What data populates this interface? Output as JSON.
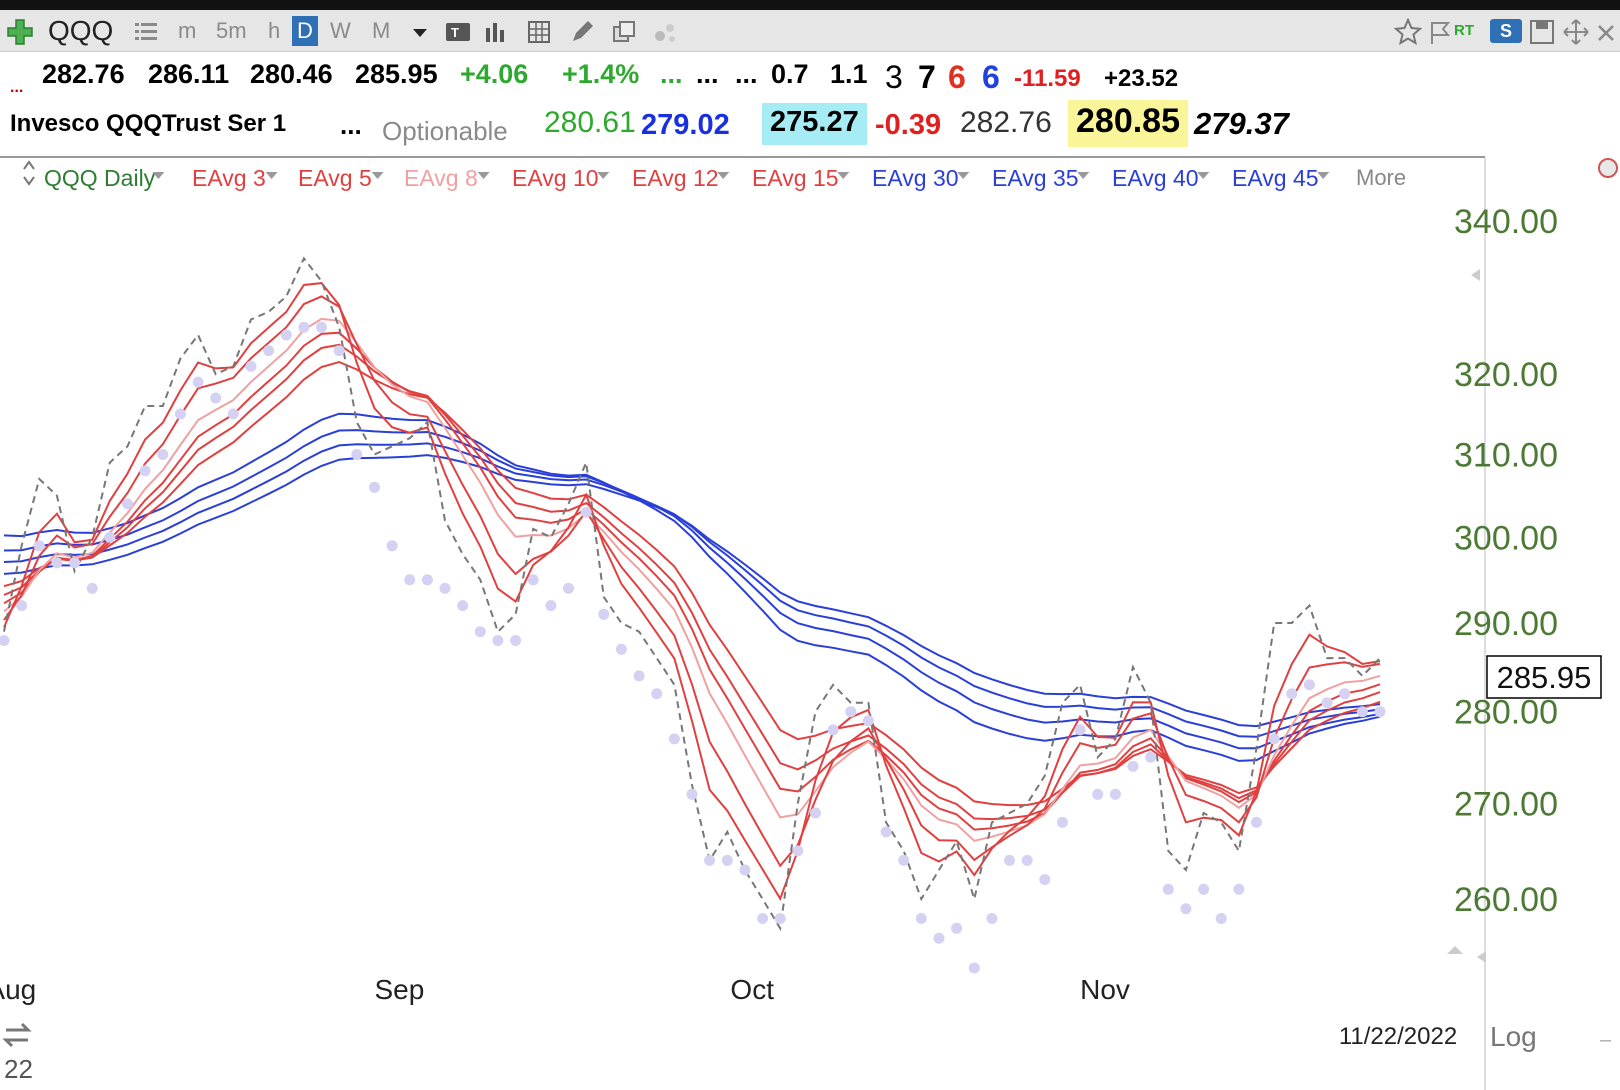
{
  "toolbar": {
    "symbol": "QQQ",
    "intervals": [
      "m",
      "5m",
      "h",
      "D",
      "W",
      "M"
    ],
    "active_interval": "D",
    "rt_label": "RT",
    "s_label": "S"
  },
  "quote": {
    "row1": [
      {
        "text": "...",
        "color": "#c00000"
      },
      {
        "text": "282.76",
        "color": "#000000"
      },
      {
        "text": "286.11",
        "color": "#000000"
      },
      {
        "text": "280.46",
        "color": "#000000"
      },
      {
        "text": "285.95",
        "color": "#000000"
      },
      {
        "text": "+4.06",
        "color": "#2ea82e"
      },
      {
        "text": "+1.4%",
        "color": "#2ea82e"
      },
      {
        "text": "...",
        "color": "#2ea82e"
      },
      {
        "text": "...",
        "color": "#000000"
      },
      {
        "text": "...",
        "color": "#000000"
      },
      {
        "text": "0.7",
        "color": "#000000"
      },
      {
        "text": "1.1",
        "color": "#000000"
      },
      {
        "text": "3",
        "color": "#000000"
      },
      {
        "text": "7",
        "color": "#000000"
      },
      {
        "text": "6",
        "color": "#e03020"
      },
      {
        "text": "6",
        "color": "#2040e0"
      },
      {
        "text": "-11.59",
        "color": "#e02020"
      },
      {
        "text": "+23.52",
        "color": "#000000"
      }
    ],
    "row2": [
      {
        "text": "Invesco QQQTrust Ser 1",
        "color": "#000000"
      },
      {
        "text": "...",
        "color": "#000000"
      },
      {
        "text": "Optionable",
        "color": "#8a8a8a"
      },
      {
        "text": "280.61",
        "color": "#2ea82e"
      },
      {
        "text": "279.02",
        "color": "#1a30e0"
      },
      {
        "text": "275.27",
        "color": "#000000"
      },
      {
        "text": "-0.39",
        "color": "#e02020"
      },
      {
        "text": "282.76",
        "color": "#333333"
      },
      {
        "text": "280.85",
        "color": "#000000"
      },
      {
        "text": "279.37",
        "color": "#000000"
      }
    ]
  },
  "legend": {
    "items": [
      {
        "label": "QQQ Daily",
        "color": "#2e7d32"
      },
      {
        "label": "EAvg 3",
        "color": "#e04040"
      },
      {
        "label": "EAvg 5",
        "color": "#e04040"
      },
      {
        "label": "EAvg 8",
        "color": "#f0a0a0"
      },
      {
        "label": "EAvg 10",
        "color": "#e04040"
      },
      {
        "label": "EAvg 12",
        "color": "#e04040"
      },
      {
        "label": "EAvg 15",
        "color": "#e04040"
      },
      {
        "label": "EAvg 30",
        "color": "#2a3fd8"
      },
      {
        "label": "EAvg 35",
        "color": "#2a3fd8"
      },
      {
        "label": "EAvg 40",
        "color": "#2a3fd8"
      },
      {
        "label": "EAvg 45",
        "color": "#2a3fd8"
      }
    ],
    "more": "More"
  },
  "chart_data": {
    "type": "line",
    "title": "QQQ Daily",
    "ylim": [
      250,
      345
    ],
    "y_ticks": [
      340,
      320,
      310,
      300,
      290,
      280,
      270,
      260
    ],
    "y_tick_labels": [
      "340.00",
      "320.00",
      "310.00",
      "300.00",
      "290.00",
      "280.00",
      "270.00",
      "260.00"
    ],
    "x_labels": [
      {
        "label": "Aug",
        "x": 0.3
      },
      {
        "label": "Sep",
        "x": 22.3
      },
      {
        "label": "Oct",
        "x": 42.3
      },
      {
        "label": "Nov",
        "x": 62.3
      }
    ],
    "last_price": 285.95,
    "last_price_label": "285.95",
    "date_label": "11/22/2022",
    "scale_label": "Log",
    "corner_label": "22",
    "grid": false,
    "price_close": [
      289,
      299,
      307,
      305,
      296,
      300,
      309,
      311,
      316,
      316,
      322,
      325,
      320,
      321,
      327,
      328,
      330,
      335,
      332,
      326,
      314,
      310,
      311,
      312,
      314,
      302,
      298,
      295,
      289,
      291,
      301,
      300,
      304,
      309,
      293,
      290,
      289,
      286,
      283,
      272,
      264,
      267,
      263,
      260,
      257,
      270,
      280,
      283,
      281,
      281,
      268,
      265,
      260,
      263,
      266,
      260,
      268,
      269,
      270,
      273,
      281,
      283,
      275,
      277,
      285,
      281,
      265,
      263,
      269,
      268,
      265,
      276,
      290,
      290,
      292,
      286,
      286,
      284,
      286
    ],
    "price_low": [
      288,
      292,
      299,
      297,
      297,
      294,
      300,
      304,
      308,
      310,
      315,
      319,
      317,
      315,
      321,
      323,
      325,
      326,
      326,
      323,
      310,
      306,
      299,
      295,
      295,
      294,
      292,
      289,
      288,
      288,
      295,
      292,
      294,
      303,
      291,
      287,
      284,
      282,
      277,
      271,
      264,
      264,
      263,
      258,
      258,
      265,
      269,
      278,
      280,
      279,
      267,
      264,
      258,
      256,
      257,
      253,
      258,
      264,
      264,
      262,
      268,
      278,
      271,
      271,
      274,
      275,
      261,
      259,
      261,
      258,
      261,
      268,
      277,
      282,
      283,
      281,
      282,
      280,
      280
    ]
  }
}
